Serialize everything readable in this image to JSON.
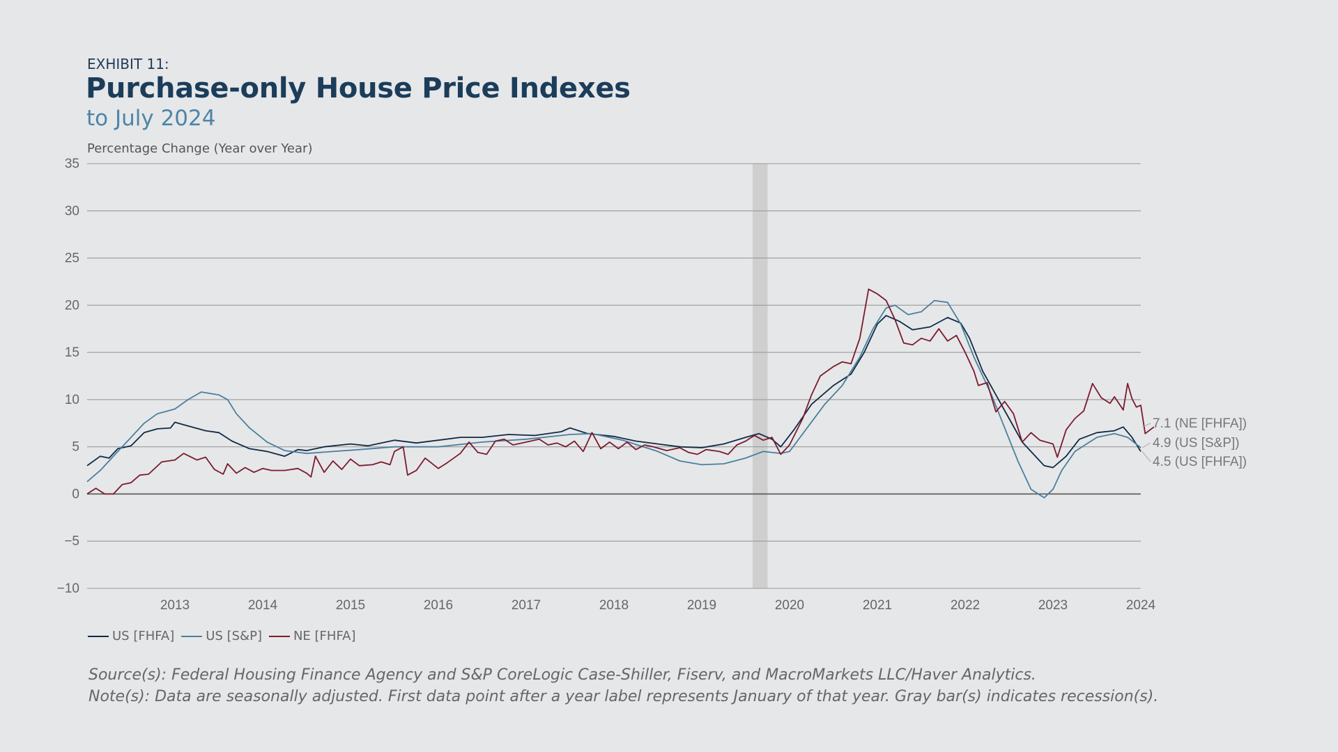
{
  "header": {
    "exhibit": "EXHIBIT 11:",
    "title": "Purchase-only House Price Indexes",
    "subtitle": "to July 2024"
  },
  "footer": {
    "source": "Source(s): Federal Housing Finance Agency and S&P CoreLogic Case-Shiller, Fiserv, and MacroMarkets LLC/Haver Analytics.",
    "note": "Note(s): Data are seasonally adjusted. First data point after a year label represents January of that year. Gray bar(s) indicates recession(s)."
  },
  "colors": {
    "us_fhfa": "#0f2a44",
    "us_sp": "#4a7f9d",
    "ne_fhfa": "#7a1a2e",
    "recession": "#cfcfd0",
    "grid": "#9a9a9a",
    "zero": "#555555"
  },
  "chart_data": {
    "type": "line",
    "title": "Purchase-only House Price Indexes",
    "subtitle": "to July 2024",
    "ylabel": "Percentage Change (Year over Year)",
    "xlabel": "",
    "ylim": [
      -10,
      35
    ],
    "yticks": [
      "35",
      "30",
      "25",
      "20",
      "15",
      "10",
      "5",
      "0",
      "−5",
      "−10"
    ],
    "ytick_values": [
      35,
      30,
      25,
      20,
      15,
      10,
      5,
      0,
      -5,
      -10
    ],
    "xlim": [
      2012.5,
      2024.5
    ],
    "xticks": [
      "2013",
      "2014",
      "2015",
      "2016",
      "2017",
      "2018",
      "2019",
      "2020",
      "2021",
      "2022",
      "2023",
      "2024"
    ],
    "grid": true,
    "legend_placement": "bottom-left",
    "recessions": [
      [
        2020.08,
        2020.25
      ]
    ],
    "end_labels": [
      "7.1 (NE [FHFA])",
      "4.9 (US [S&P])",
      "4.5 (US [FHFA])"
    ],
    "series": [
      {
        "name": "US [FHFA]",
        "color_key": "us_fhfa",
        "points": [
          [
            2012.5,
            3.0
          ],
          [
            2012.65,
            4.0
          ],
          [
            2012.75,
            3.8
          ],
          [
            2012.85,
            4.8
          ],
          [
            2013.0,
            5.1
          ],
          [
            2013.15,
            6.5
          ],
          [
            2013.3,
            6.9
          ],
          [
            2013.45,
            7.0
          ],
          [
            2013.5,
            7.6
          ],
          [
            2013.65,
            7.2
          ],
          [
            2013.85,
            6.7
          ],
          [
            2014.0,
            6.5
          ],
          [
            2014.15,
            5.6
          ],
          [
            2014.35,
            4.8
          ],
          [
            2014.55,
            4.5
          ],
          [
            2014.75,
            4.0
          ],
          [
            2014.9,
            4.7
          ],
          [
            2015.0,
            4.6
          ],
          [
            2015.2,
            5.0
          ],
          [
            2015.5,
            5.3
          ],
          [
            2015.7,
            5.1
          ],
          [
            2016.0,
            5.7
          ],
          [
            2016.25,
            5.4
          ],
          [
            2016.5,
            5.7
          ],
          [
            2016.75,
            6.0
          ],
          [
            2017.0,
            6.0
          ],
          [
            2017.3,
            6.3
          ],
          [
            2017.6,
            6.2
          ],
          [
            2017.9,
            6.6
          ],
          [
            2018.0,
            7.0
          ],
          [
            2018.2,
            6.4
          ],
          [
            2018.5,
            6.1
          ],
          [
            2018.75,
            5.6
          ],
          [
            2019.0,
            5.3
          ],
          [
            2019.25,
            5.0
          ],
          [
            2019.5,
            4.9
          ],
          [
            2019.75,
            5.3
          ],
          [
            2020.0,
            6.0
          ],
          [
            2020.15,
            6.4
          ],
          [
            2020.3,
            5.8
          ],
          [
            2020.4,
            5.0
          ],
          [
            2020.55,
            6.8
          ],
          [
            2020.75,
            9.5
          ],
          [
            2021.0,
            11.5
          ],
          [
            2021.2,
            12.7
          ],
          [
            2021.35,
            15.0
          ],
          [
            2021.5,
            18.0
          ],
          [
            2021.6,
            18.9
          ],
          [
            2021.75,
            18.3
          ],
          [
            2021.9,
            17.4
          ],
          [
            2022.1,
            17.7
          ],
          [
            2022.3,
            18.7
          ],
          [
            2022.45,
            18.1
          ],
          [
            2022.55,
            16.5
          ],
          [
            2022.7,
            13.0
          ],
          [
            2022.85,
            10.5
          ],
          [
            2023.0,
            8.0
          ],
          [
            2023.15,
            5.5
          ],
          [
            2023.3,
            4.0
          ],
          [
            2023.4,
            3.0
          ],
          [
            2023.5,
            2.8
          ],
          [
            2023.65,
            4.0
          ],
          [
            2023.8,
            5.8
          ],
          [
            2024.0,
            6.5
          ],
          [
            2024.2,
            6.7
          ],
          [
            2024.3,
            7.1
          ],
          [
            2024.4,
            6.0
          ],
          [
            2024.5,
            4.5
          ]
        ]
      },
      {
        "name": "US [S&P]",
        "color_key": "us_sp",
        "points": [
          [
            2012.5,
            1.3
          ],
          [
            2012.65,
            2.5
          ],
          [
            2012.85,
            4.5
          ],
          [
            2013.0,
            6.0
          ],
          [
            2013.15,
            7.5
          ],
          [
            2013.3,
            8.5
          ],
          [
            2013.5,
            9.0
          ],
          [
            2013.65,
            10.0
          ],
          [
            2013.8,
            10.8
          ],
          [
            2014.0,
            10.5
          ],
          [
            2014.1,
            10.0
          ],
          [
            2014.2,
            8.5
          ],
          [
            2014.35,
            7.0
          ],
          [
            2014.55,
            5.5
          ],
          [
            2014.75,
            4.6
          ],
          [
            2015.0,
            4.3
          ],
          [
            2015.3,
            4.5
          ],
          [
            2015.6,
            4.7
          ],
          [
            2016.0,
            5.0
          ],
          [
            2016.5,
            5.0
          ],
          [
            2017.0,
            5.5
          ],
          [
            2017.5,
            5.8
          ],
          [
            2018.0,
            6.3
          ],
          [
            2018.25,
            6.4
          ],
          [
            2018.6,
            5.7
          ],
          [
            2019.0,
            4.5
          ],
          [
            2019.25,
            3.5
          ],
          [
            2019.5,
            3.1
          ],
          [
            2019.75,
            3.2
          ],
          [
            2020.0,
            3.8
          ],
          [
            2020.2,
            4.5
          ],
          [
            2020.4,
            4.3
          ],
          [
            2020.5,
            4.5
          ],
          [
            2020.7,
            7.0
          ],
          [
            2020.9,
            9.5
          ],
          [
            2021.1,
            11.5
          ],
          [
            2021.3,
            14.5
          ],
          [
            2021.45,
            17.5
          ],
          [
            2021.6,
            19.7
          ],
          [
            2021.7,
            20.0
          ],
          [
            2021.85,
            19.0
          ],
          [
            2022.0,
            19.3
          ],
          [
            2022.15,
            20.5
          ],
          [
            2022.3,
            20.3
          ],
          [
            2022.45,
            18.0
          ],
          [
            2022.6,
            14.5
          ],
          [
            2022.8,
            10.5
          ],
          [
            2022.95,
            7.0
          ],
          [
            2023.1,
            3.5
          ],
          [
            2023.25,
            0.5
          ],
          [
            2023.4,
            -0.4
          ],
          [
            2023.5,
            0.5
          ],
          [
            2023.6,
            2.5
          ],
          [
            2023.75,
            4.5
          ],
          [
            2024.0,
            6.0
          ],
          [
            2024.2,
            6.4
          ],
          [
            2024.35,
            6.0
          ],
          [
            2024.5,
            4.9
          ]
        ]
      },
      {
        "name": "NE [FHFA]",
        "color_key": "ne_fhfa",
        "points": [
          [
            2012.5,
            0.0
          ],
          [
            2012.6,
            0.6
          ],
          [
            2012.7,
            0.0
          ],
          [
            2012.8,
            0.0
          ],
          [
            2012.9,
            1.0
          ],
          [
            2013.0,
            1.2
          ],
          [
            2013.1,
            2.0
          ],
          [
            2013.2,
            2.1
          ],
          [
            2013.35,
            3.4
          ],
          [
            2013.5,
            3.6
          ],
          [
            2013.6,
            4.3
          ],
          [
            2013.75,
            3.6
          ],
          [
            2013.85,
            3.9
          ],
          [
            2013.95,
            2.6
          ],
          [
            2014.05,
            2.1
          ],
          [
            2014.1,
            3.2
          ],
          [
            2014.2,
            2.2
          ],
          [
            2014.3,
            2.8
          ],
          [
            2014.4,
            2.3
          ],
          [
            2014.5,
            2.7
          ],
          [
            2014.6,
            2.5
          ],
          [
            2014.75,
            2.5
          ],
          [
            2014.9,
            2.7
          ],
          [
            2015.0,
            2.2
          ],
          [
            2015.05,
            1.8
          ],
          [
            2015.1,
            4.0
          ],
          [
            2015.2,
            2.3
          ],
          [
            2015.3,
            3.5
          ],
          [
            2015.4,
            2.6
          ],
          [
            2015.5,
            3.7
          ],
          [
            2015.6,
            3.0
          ],
          [
            2015.75,
            3.1
          ],
          [
            2015.85,
            3.4
          ],
          [
            2015.95,
            3.1
          ],
          [
            2016.0,
            4.5
          ],
          [
            2016.1,
            5.0
          ],
          [
            2016.15,
            2.0
          ],
          [
            2016.25,
            2.5
          ],
          [
            2016.35,
            3.8
          ],
          [
            2016.5,
            2.7
          ],
          [
            2016.6,
            3.3
          ],
          [
            2016.75,
            4.3
          ],
          [
            2016.85,
            5.5
          ],
          [
            2016.95,
            4.4
          ],
          [
            2017.05,
            4.2
          ],
          [
            2017.15,
            5.6
          ],
          [
            2017.25,
            5.8
          ],
          [
            2017.35,
            5.2
          ],
          [
            2017.5,
            5.5
          ],
          [
            2017.65,
            5.8
          ],
          [
            2017.75,
            5.2
          ],
          [
            2017.85,
            5.4
          ],
          [
            2017.95,
            5.0
          ],
          [
            2018.05,
            5.6
          ],
          [
            2018.15,
            4.5
          ],
          [
            2018.25,
            6.5
          ],
          [
            2018.35,
            4.8
          ],
          [
            2018.45,
            5.5
          ],
          [
            2018.55,
            4.8
          ],
          [
            2018.65,
            5.5
          ],
          [
            2018.75,
            4.7
          ],
          [
            2018.85,
            5.2
          ],
          [
            2018.95,
            5.0
          ],
          [
            2019.1,
            4.6
          ],
          [
            2019.25,
            4.9
          ],
          [
            2019.35,
            4.4
          ],
          [
            2019.45,
            4.2
          ],
          [
            2019.55,
            4.7
          ],
          [
            2019.7,
            4.5
          ],
          [
            2019.8,
            4.2
          ],
          [
            2019.9,
            5.2
          ],
          [
            2020.0,
            5.6
          ],
          [
            2020.1,
            6.2
          ],
          [
            2020.2,
            5.7
          ],
          [
            2020.3,
            6.0
          ],
          [
            2020.4,
            4.2
          ],
          [
            2020.5,
            5.2
          ],
          [
            2020.65,
            8.0
          ],
          [
            2020.75,
            10.5
          ],
          [
            2020.85,
            12.5
          ],
          [
            2021.0,
            13.5
          ],
          [
            2021.1,
            14.0
          ],
          [
            2021.2,
            13.8
          ],
          [
            2021.3,
            16.5
          ],
          [
            2021.4,
            21.7
          ],
          [
            2021.5,
            21.2
          ],
          [
            2021.6,
            20.5
          ],
          [
            2021.7,
            18.5
          ],
          [
            2021.8,
            16.0
          ],
          [
            2021.9,
            15.8
          ],
          [
            2022.0,
            16.5
          ],
          [
            2022.1,
            16.2
          ],
          [
            2022.2,
            17.5
          ],
          [
            2022.3,
            16.2
          ],
          [
            2022.4,
            16.8
          ],
          [
            2022.5,
            15.0
          ],
          [
            2022.6,
            13.0
          ],
          [
            2022.65,
            11.5
          ],
          [
            2022.75,
            11.8
          ],
          [
            2022.85,
            8.7
          ],
          [
            2022.95,
            9.8
          ],
          [
            2023.05,
            8.5
          ],
          [
            2023.15,
            5.5
          ],
          [
            2023.25,
            6.5
          ],
          [
            2023.35,
            5.7
          ],
          [
            2023.5,
            5.3
          ],
          [
            2023.55,
            3.9
          ],
          [
            2023.65,
            6.8
          ],
          [
            2023.75,
            8.0
          ],
          [
            2023.85,
            8.8
          ],
          [
            2023.95,
            11.7
          ],
          [
            2024.05,
            10.2
          ],
          [
            2024.15,
            9.6
          ],
          [
            2024.2,
            10.3
          ],
          [
            2024.3,
            8.9
          ],
          [
            2024.35,
            11.7
          ],
          [
            2024.4,
            10.1
          ],
          [
            2024.45,
            9.2
          ],
          [
            2024.5,
            9.4
          ],
          [
            2024.55,
            6.4
          ],
          [
            2024.65,
            7.1
          ]
        ]
      }
    ]
  }
}
